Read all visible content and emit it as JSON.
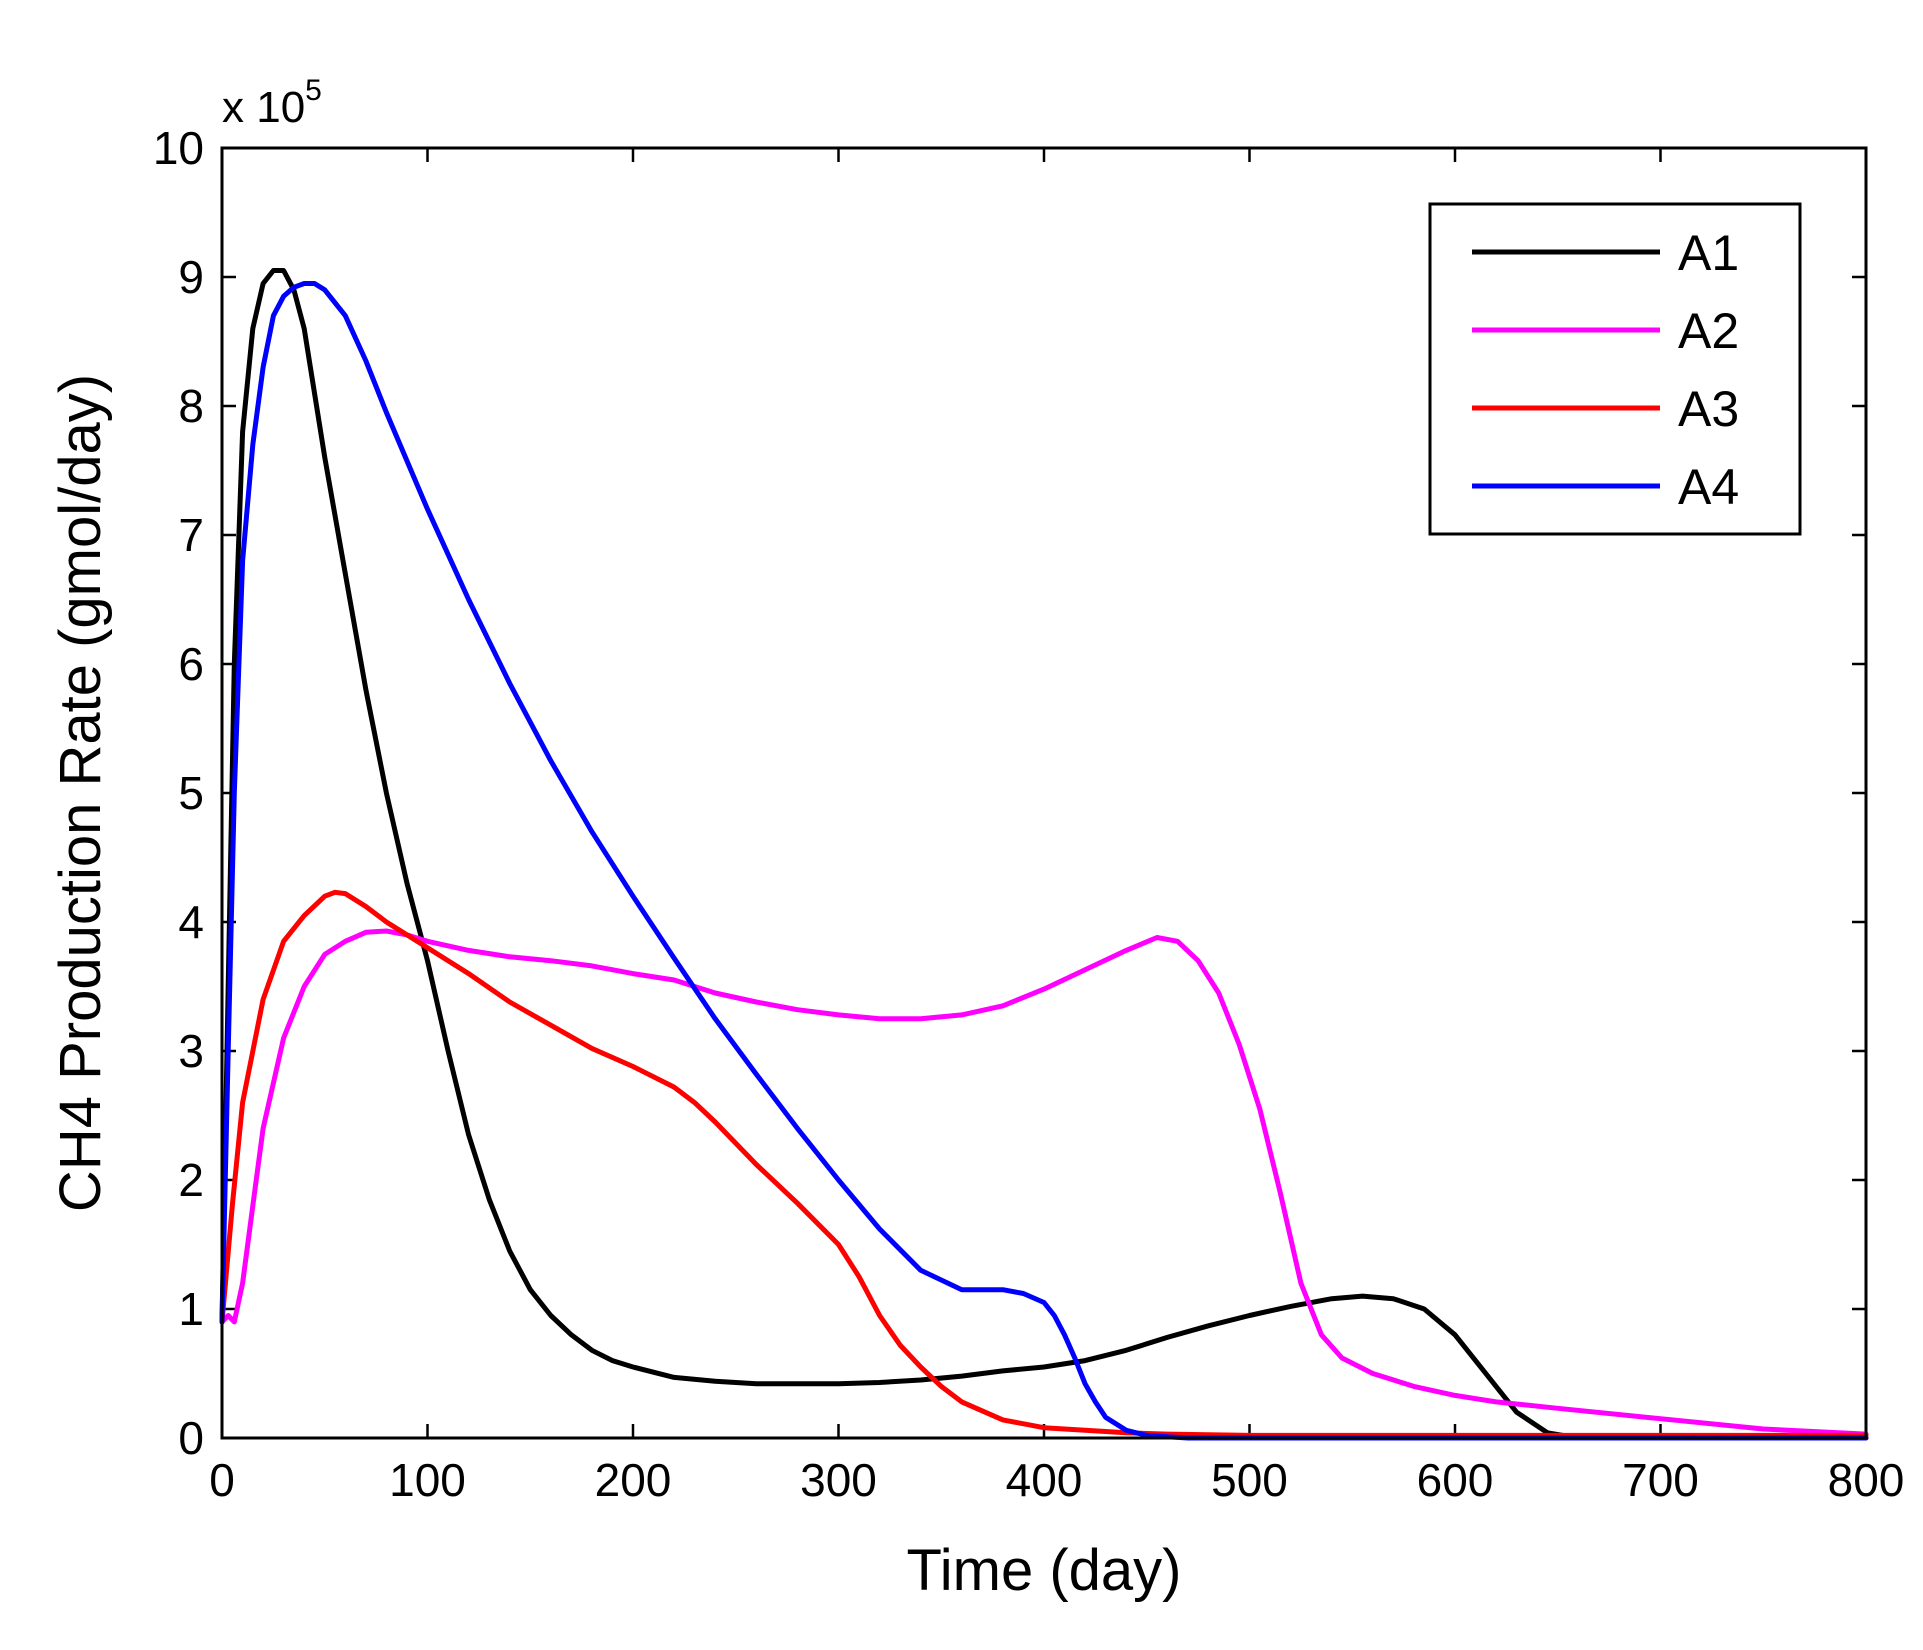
{
  "chart_data": {
    "type": "line",
    "title": "",
    "xlabel": "Time (day)",
    "ylabel": "CH4 Production Rate (gmol/day)",
    "y_scale_base": "x 10",
    "y_scale_exponent": "5",
    "xlim": [
      0,
      800
    ],
    "ylim": [
      0,
      10
    ],
    "xticks": [
      0,
      100,
      200,
      300,
      400,
      500,
      600,
      700,
      800
    ],
    "yticks": [
      0,
      1,
      2,
      3,
      4,
      5,
      6,
      7,
      8,
      9,
      10
    ],
    "grid": false,
    "legend_position": "top-right",
    "series": [
      {
        "name": "A1",
        "color": "#000000",
        "x": [
          0,
          3,
          6,
          10,
          15,
          20,
          25,
          30,
          35,
          40,
          50,
          60,
          70,
          80,
          90,
          100,
          110,
          120,
          130,
          140,
          150,
          160,
          170,
          180,
          190,
          200,
          220,
          240,
          260,
          280,
          300,
          320,
          340,
          360,
          380,
          400,
          420,
          440,
          460,
          480,
          500,
          520,
          540,
          555,
          570,
          585,
          600,
          615,
          630,
          645,
          660,
          700,
          800
        ],
        "y": [
          0.9,
          3.5,
          6.0,
          7.8,
          8.6,
          8.95,
          9.05,
          9.05,
          8.9,
          8.6,
          7.6,
          6.7,
          5.8,
          5.0,
          4.3,
          3.7,
          3.0,
          2.35,
          1.85,
          1.45,
          1.15,
          0.95,
          0.8,
          0.68,
          0.6,
          0.55,
          0.47,
          0.44,
          0.42,
          0.42,
          0.42,
          0.43,
          0.45,
          0.48,
          0.52,
          0.55,
          0.6,
          0.68,
          0.78,
          0.87,
          0.95,
          1.02,
          1.08,
          1.1,
          1.08,
          1.0,
          0.8,
          0.5,
          0.2,
          0.04,
          0.0,
          0.0,
          0.0
        ]
      },
      {
        "name": "A2",
        "color": "#ff00ff",
        "x": [
          0,
          3,
          6,
          10,
          15,
          20,
          30,
          40,
          50,
          60,
          70,
          80,
          90,
          100,
          120,
          140,
          160,
          180,
          200,
          220,
          240,
          260,
          280,
          300,
          320,
          340,
          360,
          380,
          400,
          420,
          440,
          455,
          465,
          475,
          485,
          495,
          505,
          515,
          525,
          535,
          545,
          560,
          580,
          600,
          620,
          650,
          700,
          750,
          800
        ],
        "y": [
          0.9,
          0.95,
          0.9,
          1.2,
          1.8,
          2.4,
          3.1,
          3.5,
          3.75,
          3.85,
          3.92,
          3.93,
          3.9,
          3.85,
          3.78,
          3.73,
          3.7,
          3.66,
          3.6,
          3.55,
          3.45,
          3.38,
          3.32,
          3.28,
          3.25,
          3.25,
          3.28,
          3.35,
          3.48,
          3.63,
          3.78,
          3.88,
          3.85,
          3.7,
          3.45,
          3.05,
          2.55,
          1.9,
          1.2,
          0.8,
          0.62,
          0.5,
          0.4,
          0.33,
          0.28,
          0.23,
          0.15,
          0.07,
          0.03
        ]
      },
      {
        "name": "A3",
        "color": "#ff0000",
        "x": [
          0,
          5,
          10,
          20,
          30,
          40,
          50,
          55,
          60,
          70,
          80,
          90,
          100,
          120,
          140,
          160,
          180,
          200,
          220,
          230,
          240,
          260,
          280,
          300,
          310,
          320,
          330,
          340,
          350,
          360,
          380,
          400,
          420,
          440,
          460,
          500,
          600,
          700,
          800
        ],
        "y": [
          0.9,
          1.8,
          2.6,
          3.4,
          3.85,
          4.05,
          4.2,
          4.23,
          4.22,
          4.12,
          4.0,
          3.9,
          3.8,
          3.6,
          3.38,
          3.2,
          3.02,
          2.88,
          2.72,
          2.6,
          2.45,
          2.12,
          1.82,
          1.5,
          1.25,
          0.95,
          0.72,
          0.55,
          0.4,
          0.28,
          0.14,
          0.08,
          0.06,
          0.04,
          0.03,
          0.02,
          0.02,
          0.02,
          0.02
        ]
      },
      {
        "name": "A4",
        "color": "#0000ff",
        "x": [
          0,
          3,
          6,
          10,
          15,
          20,
          25,
          30,
          35,
          40,
          45,
          50,
          60,
          70,
          80,
          100,
          120,
          140,
          160,
          180,
          200,
          220,
          240,
          260,
          280,
          300,
          320,
          340,
          360,
          380,
          390,
          400,
          405,
          410,
          415,
          420,
          425,
          430,
          440,
          450,
          460,
          470,
          500,
          600,
          700,
          800
        ],
        "y": [
          0.9,
          3.0,
          5.0,
          6.8,
          7.7,
          8.3,
          8.7,
          8.85,
          8.92,
          8.95,
          8.95,
          8.9,
          8.7,
          8.35,
          7.95,
          7.2,
          6.5,
          5.85,
          5.25,
          4.7,
          4.2,
          3.72,
          3.25,
          2.82,
          2.4,
          2.0,
          1.62,
          1.3,
          1.15,
          1.15,
          1.12,
          1.05,
          0.95,
          0.8,
          0.62,
          0.42,
          0.28,
          0.16,
          0.06,
          0.02,
          0.01,
          0.0,
          0.0,
          0.0,
          0.0,
          0.0
        ]
      }
    ]
  }
}
